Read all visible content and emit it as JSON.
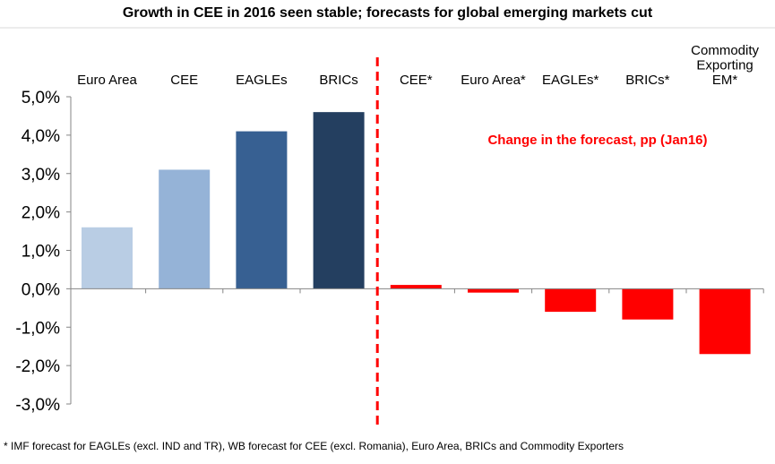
{
  "chart_data": {
    "type": "bar",
    "title": "Growth in CEE in 2016 seen stable; forecasts for global emerging markets cut",
    "annotation": "Change in the forecast, pp (Jan16)",
    "footnote": "* IMF forecast for EAGLEs (excl. IND and TR),  WB forecast  for CEE (excl. Romania),  Euro Area, BRICs and Commodity  Exporters",
    "ylim": [
      -3.0,
      5.0
    ],
    "yticks": [
      "5,0%",
      "4,0%",
      "3,0%",
      "2,0%",
      "1,0%",
      "0,0%",
      "-1,0%",
      "-2,0%",
      "-3,0%"
    ],
    "ytick_values": [
      5,
      4,
      3,
      2,
      1,
      0,
      -1,
      -2,
      -3
    ],
    "grid": false,
    "categories": [
      [
        "Euro Area"
      ],
      [
        "CEE"
      ],
      [
        "EAGLEs"
      ],
      [
        "BRICs"
      ],
      [
        "CEE*"
      ],
      [
        "Euro Area*"
      ],
      [
        "EAGLEs*"
      ],
      [
        "BRICs*"
      ],
      [
        "Commodity",
        "Exporting",
        "EM*"
      ]
    ],
    "values": [
      1.6,
      3.1,
      4.1,
      4.6,
      0.1,
      -0.1,
      -0.6,
      -0.8,
      -1.7
    ],
    "colors": [
      "#b9cde4",
      "#95b3d7",
      "#376092",
      "#243f60",
      "#ff0000",
      "#ff0000",
      "#ff0000",
      "#ff0000",
      "#ff0000"
    ],
    "annotation_color": "#ff0000",
    "divider_color": "#ff0000"
  }
}
